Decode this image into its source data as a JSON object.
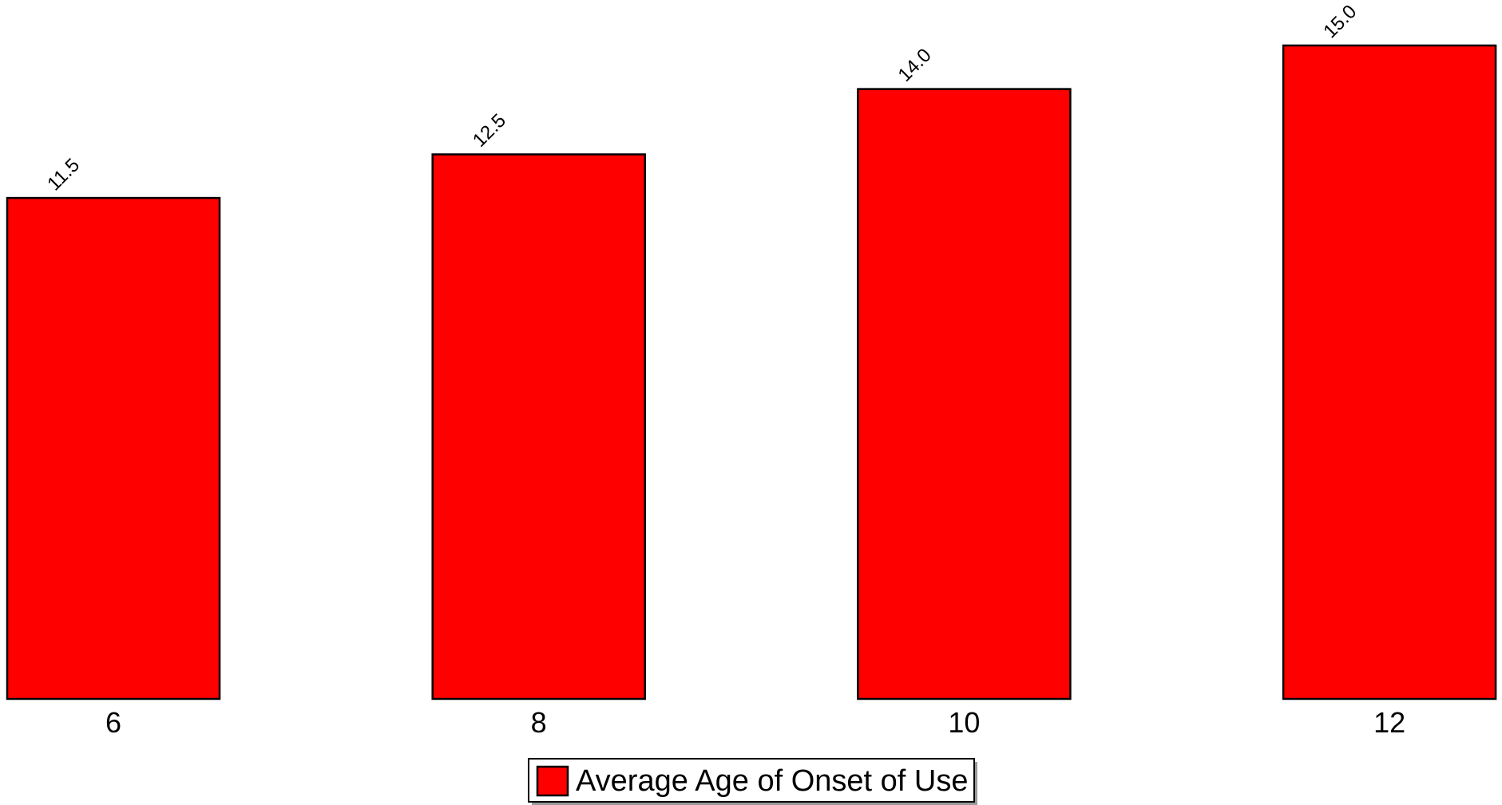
{
  "chart_data": {
    "type": "bar",
    "categories": [
      "6",
      "8",
      "10",
      "12"
    ],
    "series": [
      {
        "name": "Average Age of Onset of Use",
        "values": [
          11.5,
          12.5,
          14.0,
          15.0
        ],
        "color": "#ff0000"
      }
    ],
    "value_labels": [
      "11.5",
      "12.5",
      "14.0",
      "15.0"
    ],
    "ylim": [
      0,
      16
    ],
    "grid": false,
    "legend_position": "bottom-center"
  }
}
